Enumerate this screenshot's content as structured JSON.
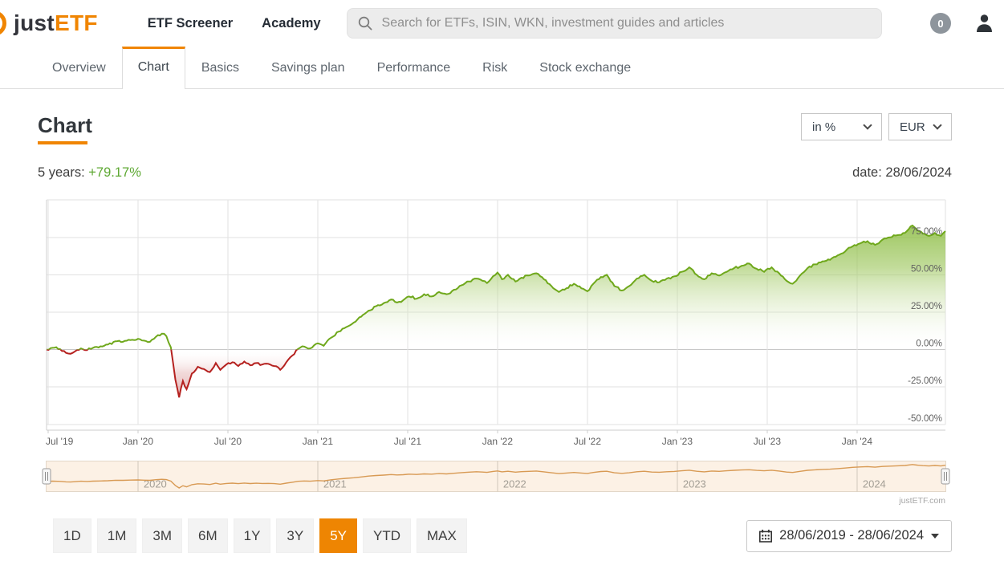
{
  "header": {
    "logo_just": "just",
    "logo_etf": "ETF",
    "nav_items": [
      {
        "label": "ETF Screener"
      },
      {
        "label": "Academy"
      }
    ],
    "search_placeholder": "Search for ETFs, ISIN, WKN, investment guides and articles",
    "counter_badge": "0"
  },
  "tabs": {
    "active": "Chart",
    "items": [
      {
        "label": "Overview"
      },
      {
        "label": "Chart"
      },
      {
        "label": "Basics"
      },
      {
        "label": "Savings plan"
      },
      {
        "label": "Performance"
      },
      {
        "label": "Risk"
      },
      {
        "label": "Stock exchange"
      }
    ]
  },
  "toolbar": {
    "page_title": "Chart",
    "display_mode": "in %",
    "currency": "EUR"
  },
  "summary": {
    "period_label": "5 years:",
    "period_return": "+79.17%",
    "date_text": "date: 28/06/2024"
  },
  "chart_data": {
    "type": "area",
    "name": "ETF performance, 5 years, in % (EUR)",
    "threshold": 0,
    "ylim": [
      -50,
      100
    ],
    "xlim_months": [
      0,
      60
    ],
    "grid": true,
    "watermark": "justETF",
    "y_ticks": [
      {
        "label": "75.00%",
        "value": 75
      },
      {
        "label": "50.00%",
        "value": 50
      },
      {
        "label": "25.00%",
        "value": 25
      },
      {
        "label": "0.00%",
        "value": 0
      },
      {
        "label": "-25.00%",
        "value": -25
      },
      {
        "label": "-50.00%",
        "value": -50
      }
    ],
    "x_ticks": [
      {
        "label": "Jul '19",
        "month": 0.1
      },
      {
        "label": "Jan '20",
        "month": 6.1
      },
      {
        "label": "Jul '20",
        "month": 12.1
      },
      {
        "label": "Jan '21",
        "month": 18.1
      },
      {
        "label": "Jul '21",
        "month": 24.1
      },
      {
        "label": "Jan '22",
        "month": 30.1
      },
      {
        "label": "Jul '22",
        "month": 36.1
      },
      {
        "label": "Jan '23",
        "month": 42.1
      },
      {
        "label": "Jul '23",
        "month": 48.1
      },
      {
        "label": "Jan '24",
        "month": 54.1
      }
    ],
    "points": [
      [
        0,
        0
      ],
      [
        0.4,
        1.2
      ],
      [
        0.9,
        0.3
      ],
      [
        1.3,
        -2.2
      ],
      [
        1.6,
        -2.8
      ],
      [
        1.9,
        -1.2
      ],
      [
        2.3,
        0.8
      ],
      [
        2.7,
        -0.4
      ],
      [
        3.1,
        1.2
      ],
      [
        3.6,
        2.2
      ],
      [
        4.1,
        3.4
      ],
      [
        4.6,
        5.6
      ],
      [
        5.1,
        5.2
      ],
      [
        5.6,
        6.4
      ],
      [
        6.1,
        7.2
      ],
      [
        6.5,
        6.0
      ],
      [
        6.9,
        5.2
      ],
      [
        7.3,
        8.6
      ],
      [
        7.7,
        10.6
      ],
      [
        8.0,
        9.0
      ],
      [
        8.3,
        1.5
      ],
      [
        8.6,
        -20.0
      ],
      [
        8.85,
        -32.0
      ],
      [
        9.1,
        -21.0
      ],
      [
        9.35,
        -26.5
      ],
      [
        9.7,
        -16.0
      ],
      [
        10.1,
        -11.5
      ],
      [
        10.5,
        -13.0
      ],
      [
        10.9,
        -15.0
      ],
      [
        11.3,
        -9.0
      ],
      [
        11.6,
        -13.5
      ],
      [
        12.0,
        -10.0
      ],
      [
        12.4,
        -8.5
      ],
      [
        12.8,
        -11.0
      ],
      [
        13.2,
        -8.0
      ],
      [
        13.6,
        -10.5
      ],
      [
        14.0,
        -9.0
      ],
      [
        14.4,
        -10.0
      ],
      [
        14.8,
        -9.5
      ],
      [
        15.2,
        -11.0
      ],
      [
        15.6,
        -13.5
      ],
      [
        16.0,
        -8.5
      ],
      [
        16.4,
        -4.0
      ],
      [
        16.8,
        0.5
      ],
      [
        17.2,
        2.0
      ],
      [
        17.6,
        0.8
      ],
      [
        18.1,
        4.2
      ],
      [
        18.5,
        2.6
      ],
      [
        19.0,
        8.0
      ],
      [
        19.5,
        12.0
      ],
      [
        20.0,
        15.0
      ],
      [
        20.5,
        18.0
      ],
      [
        21.0,
        22.0
      ],
      [
        21.5,
        26.0
      ],
      [
        22.0,
        29.0
      ],
      [
        22.5,
        31.0
      ],
      [
        23.0,
        33.5
      ],
      [
        23.4,
        31.5
      ],
      [
        23.8,
        33.0
      ],
      [
        24.2,
        35.5
      ],
      [
        24.7,
        34.0
      ],
      [
        25.2,
        37.0
      ],
      [
        25.7,
        35.5
      ],
      [
        26.2,
        38.5
      ],
      [
        26.7,
        37.0
      ],
      [
        27.2,
        40.0
      ],
      [
        27.7,
        43.0
      ],
      [
        28.2,
        45.5
      ],
      [
        28.7,
        47.5
      ],
      [
        29.1,
        46.0
      ],
      [
        29.4,
        44.5
      ],
      [
        29.8,
        49.0
      ],
      [
        30.1,
        51.5
      ],
      [
        30.4,
        47.0
      ],
      [
        30.8,
        50.0
      ],
      [
        31.3,
        45.5
      ],
      [
        31.7,
        48.0
      ],
      [
        32.2,
        49.5
      ],
      [
        32.7,
        51.0
      ],
      [
        33.2,
        47.0
      ],
      [
        33.7,
        42.5
      ],
      [
        34.2,
        38.5
      ],
      [
        34.7,
        41.0
      ],
      [
        35.2,
        44.0
      ],
      [
        35.7,
        41.0
      ],
      [
        36.1,
        39.0
      ],
      [
        36.5,
        44.0
      ],
      [
        37.0,
        48.5
      ],
      [
        37.4,
        50.0
      ],
      [
        37.9,
        42.5
      ],
      [
        38.4,
        39.5
      ],
      [
        38.9,
        42.5
      ],
      [
        39.4,
        47.5
      ],
      [
        39.9,
        50.0
      ],
      [
        40.4,
        46.0
      ],
      [
        40.9,
        45.0
      ],
      [
        41.4,
        47.5
      ],
      [
        41.9,
        49.0
      ],
      [
        42.4,
        52.0
      ],
      [
        42.9,
        55.0
      ],
      [
        43.4,
        50.0
      ],
      [
        43.9,
        47.0
      ],
      [
        44.4,
        51.0
      ],
      [
        44.9,
        49.5
      ],
      [
        45.4,
        52.0
      ],
      [
        45.9,
        54.5
      ],
      [
        46.4,
        56.0
      ],
      [
        46.9,
        57.5
      ],
      [
        47.4,
        54.0
      ],
      [
        47.9,
        52.0
      ],
      [
        48.4,
        55.0
      ],
      [
        48.9,
        51.0
      ],
      [
        49.4,
        46.0
      ],
      [
        49.8,
        44.0
      ],
      [
        50.3,
        49.5
      ],
      [
        50.8,
        54.5
      ],
      [
        51.3,
        57.0
      ],
      [
        51.8,
        59.0
      ],
      [
        52.3,
        60.0
      ],
      [
        52.8,
        63.0
      ],
      [
        53.3,
        65.5
      ],
      [
        53.8,
        69.0
      ],
      [
        54.3,
        71.0
      ],
      [
        54.8,
        72.5
      ],
      [
        55.3,
        70.0
      ],
      [
        55.8,
        73.5
      ],
      [
        56.3,
        75.0
      ],
      [
        56.8,
        76.5
      ],
      [
        57.3,
        78.0
      ],
      [
        57.8,
        83.0
      ],
      [
        58.1,
        80.0
      ],
      [
        58.5,
        77.5
      ],
      [
        58.9,
        76.0
      ],
      [
        59.3,
        78.0
      ],
      [
        59.7,
        76.0
      ],
      [
        60,
        79.17
      ]
    ]
  },
  "navigator": {
    "year_ticks": [
      {
        "label": "2020",
        "month": 6.1
      },
      {
        "label": "2021",
        "month": 18.1
      },
      {
        "label": "2022",
        "month": 30.1
      },
      {
        "label": "2023",
        "month": 42.1
      },
      {
        "label": "2024",
        "month": 54.1
      }
    ],
    "credit": "justETF.com",
    "value_range": [
      -40,
      90
    ]
  },
  "range_buttons": {
    "active": "5Y",
    "items": [
      {
        "label": "1D"
      },
      {
        "label": "1M"
      },
      {
        "label": "3M"
      },
      {
        "label": "6M"
      },
      {
        "label": "1Y"
      },
      {
        "label": "3Y"
      },
      {
        "label": "5Y"
      },
      {
        "label": "YTD"
      },
      {
        "label": "MAX"
      }
    ]
  },
  "date_range_picker": {
    "value": "28/06/2019 - 28/06/2024"
  },
  "colors": {
    "accent_orange": "#F08502",
    "positive_green": "#6FA81C",
    "negative_red": "#B5211F",
    "navigator_line": "#D89A54",
    "grid": "#E2E2E2"
  }
}
